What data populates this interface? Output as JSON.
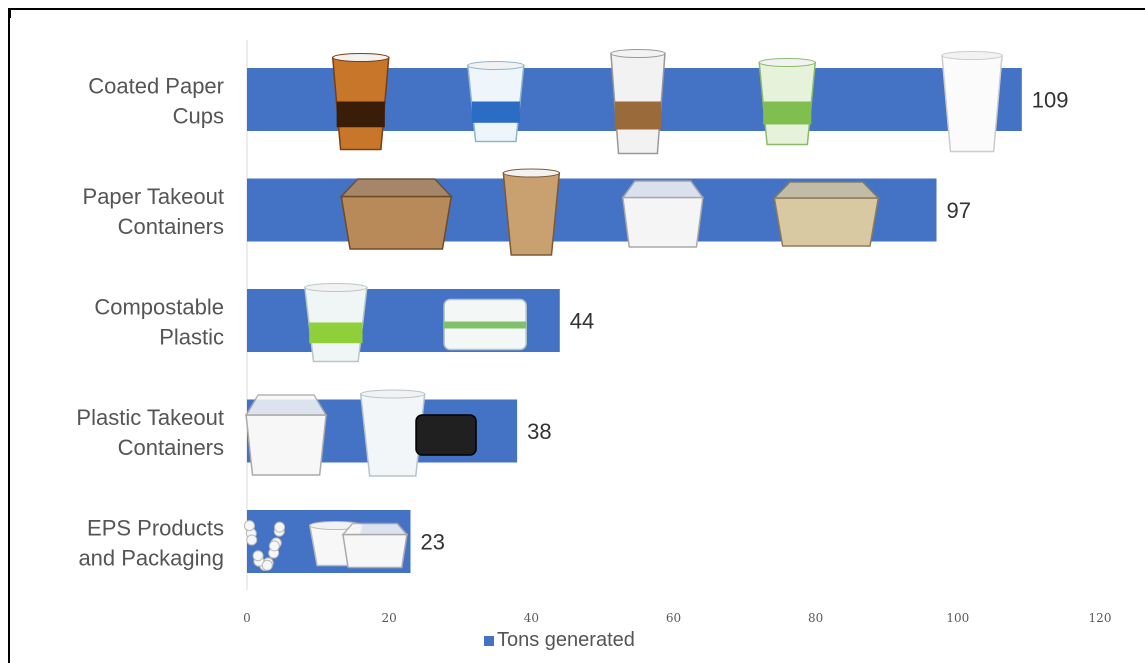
{
  "chart_data": {
    "type": "bar",
    "orientation": "horizontal",
    "categories": [
      "Coated Paper\nCups",
      "Paper Takeout\nContainers",
      "Compostable\nPlastic",
      "Plastic Takeout\nContainers",
      "EPS Products\nand Packaging"
    ],
    "values": [
      109,
      97,
      44,
      38,
      23
    ],
    "series": [
      {
        "name": "Tons generated",
        "values": [
          109,
          97,
          44,
          38,
          23
        ]
      }
    ],
    "xlim": [
      0,
      120
    ],
    "xticks": [
      "0",
      "20",
      "40",
      "60",
      "80",
      "100",
      "120"
    ],
    "grid": false,
    "legend_position": "bottom",
    "colors": {
      "bar": "#4472c4",
      "axis": "#d9d9d9",
      "frame": "#000000"
    },
    "item_images": [
      [
        "paper-cup-brown-icon",
        "paper-cup-pattern-icon",
        "coffee-cup-lid-icon",
        "paper-cup-green-icon",
        "paper-cup-white-icon"
      ],
      [
        "kraft-takeout-box-icon",
        "fry-sleeve-icon",
        "white-takeout-pail-icon",
        "bagasse-clamshell-icon"
      ],
      [
        "clear-compostable-cup-icon",
        "clear-portion-cups-icon"
      ],
      [
        "foam-hinged-container-icon",
        "clear-plastic-cup-icon",
        "black-round-container-icon"
      ],
      [
        "eps-packing-peanuts-icon",
        "eps-foam-cup-icon",
        "eps-clamshell-icon"
      ]
    ]
  }
}
